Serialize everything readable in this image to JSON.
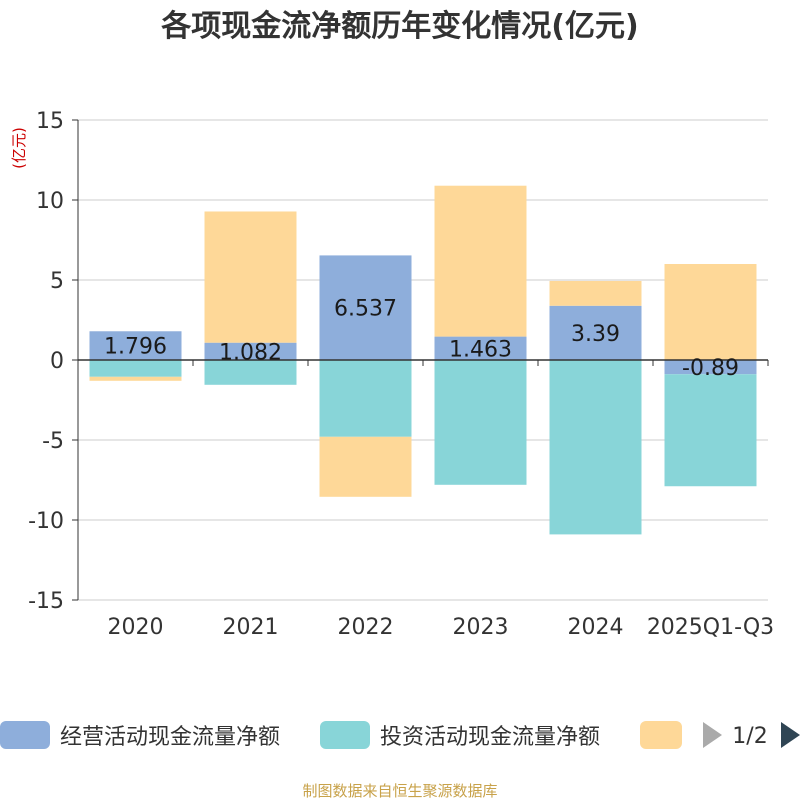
{
  "chart_data": {
    "type": "bar",
    "stacked": true,
    "title": "各项现金流净额历年变化情况(亿元)",
    "ylabel": "(亿元)",
    "xlabel": "",
    "categories": [
      "2020",
      "2021",
      "2022",
      "2023",
      "2024",
      "2025Q1-Q3"
    ],
    "ylim": [
      -15,
      15
    ],
    "yticks": [
      15,
      10,
      5,
      0,
      -5,
      -10,
      -15
    ],
    "ytick_labels": [
      "15",
      "10",
      "5",
      "0",
      "-5",
      "-10",
      "-15"
    ],
    "grid": true,
    "series": [
      {
        "name": "经营活动现金流量净额",
        "color": "#8eaedb",
        "values": [
          1.796,
          1.082,
          6.537,
          1.463,
          3.39,
          -0.89
        ],
        "labels": [
          "1.796",
          "1.082",
          "6.537",
          "1.463",
          "3.39",
          "-0.89"
        ]
      },
      {
        "name": "投资活动现金流量净额",
        "color": "#88d5d8",
        "values": [
          -1.05,
          -1.55,
          -4.8,
          -7.8,
          -10.9,
          -7.0
        ]
      },
      {
        "name": "",
        "color": "#fed898",
        "values": [
          -0.25,
          8.2,
          -3.75,
          9.43,
          1.55,
          6.0
        ]
      }
    ],
    "legend_position": "bottom",
    "legend_page": "1/2",
    "source": "制图数据来自恒生聚源数据库"
  },
  "colors": {
    "title": "#333333",
    "axis": "#333333",
    "grid": "#cccccc",
    "unit": "#cc0000",
    "source": "#c8a24a",
    "arrow_disabled": "#aaaaaa",
    "arrow_active": "#2f4554"
  }
}
